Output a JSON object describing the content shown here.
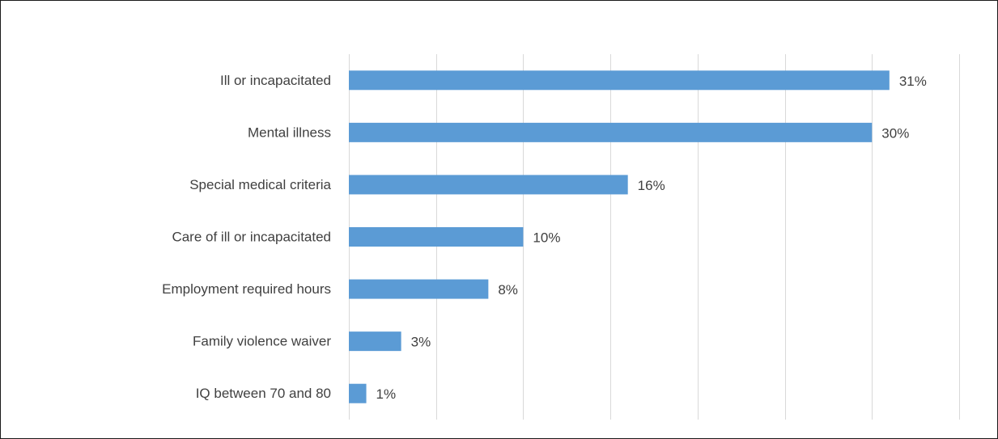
{
  "chart_data": {
    "type": "bar",
    "orientation": "horizontal",
    "title": "",
    "xlabel": "",
    "ylabel": "",
    "categories": [
      "Ill or incapacitated",
      "Mental illness",
      "Special medical criteria",
      "Care of ill or incapacitated",
      "Employment required hours",
      "Family violence waiver",
      "IQ between 70 and 80"
    ],
    "values": [
      31,
      30,
      16,
      10,
      8,
      3,
      1
    ],
    "data_labels": [
      "31%",
      "30%",
      "16%",
      "10%",
      "8%",
      "3%",
      "1%"
    ],
    "unit": "%",
    "xlim": [
      0,
      35
    ],
    "grid_step": 5,
    "grid": true,
    "legend": "none",
    "colors": {
      "bar": "#5B9BD5",
      "grid": "#D9D9D9",
      "text": "#404040",
      "frame": "#1a1a1a"
    }
  }
}
